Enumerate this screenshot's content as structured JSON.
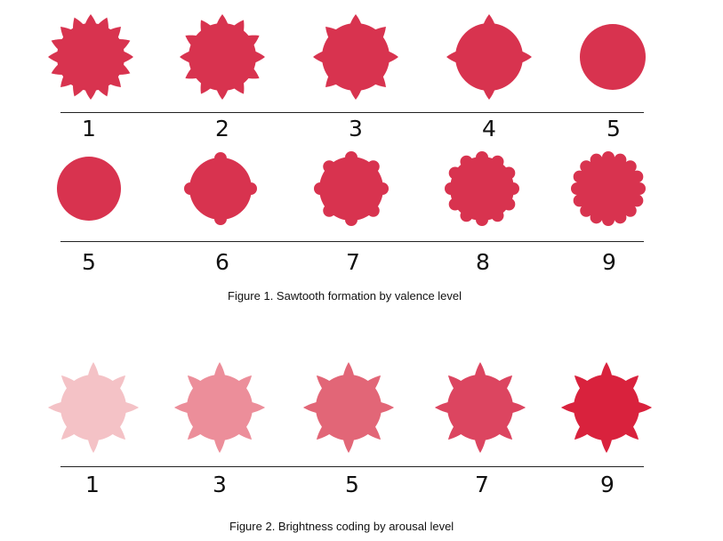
{
  "figure1": {
    "row1": {
      "labels": [
        "1",
        "2",
        "3",
        "4",
        "5"
      ],
      "spikes": [
        16,
        12,
        8,
        4,
        0
      ],
      "color": "#d8334f"
    },
    "row2": {
      "labels": [
        "5",
        "6",
        "7",
        "8",
        "9"
      ],
      "bumps": [
        0,
        4,
        8,
        12,
        16
      ],
      "color": "#d8334f"
    },
    "caption": "Figure 1. Sawtooth formation by valence level"
  },
  "figure2": {
    "labels": [
      "1",
      "3",
      "5",
      "7",
      "9"
    ],
    "colors": [
      "#f4c2c6",
      "#ec8e9a",
      "#e26677",
      "#dc4560",
      "#d9223d"
    ],
    "spikes": 8,
    "caption": "Figure 2. Brightness coding by arousal level"
  }
}
